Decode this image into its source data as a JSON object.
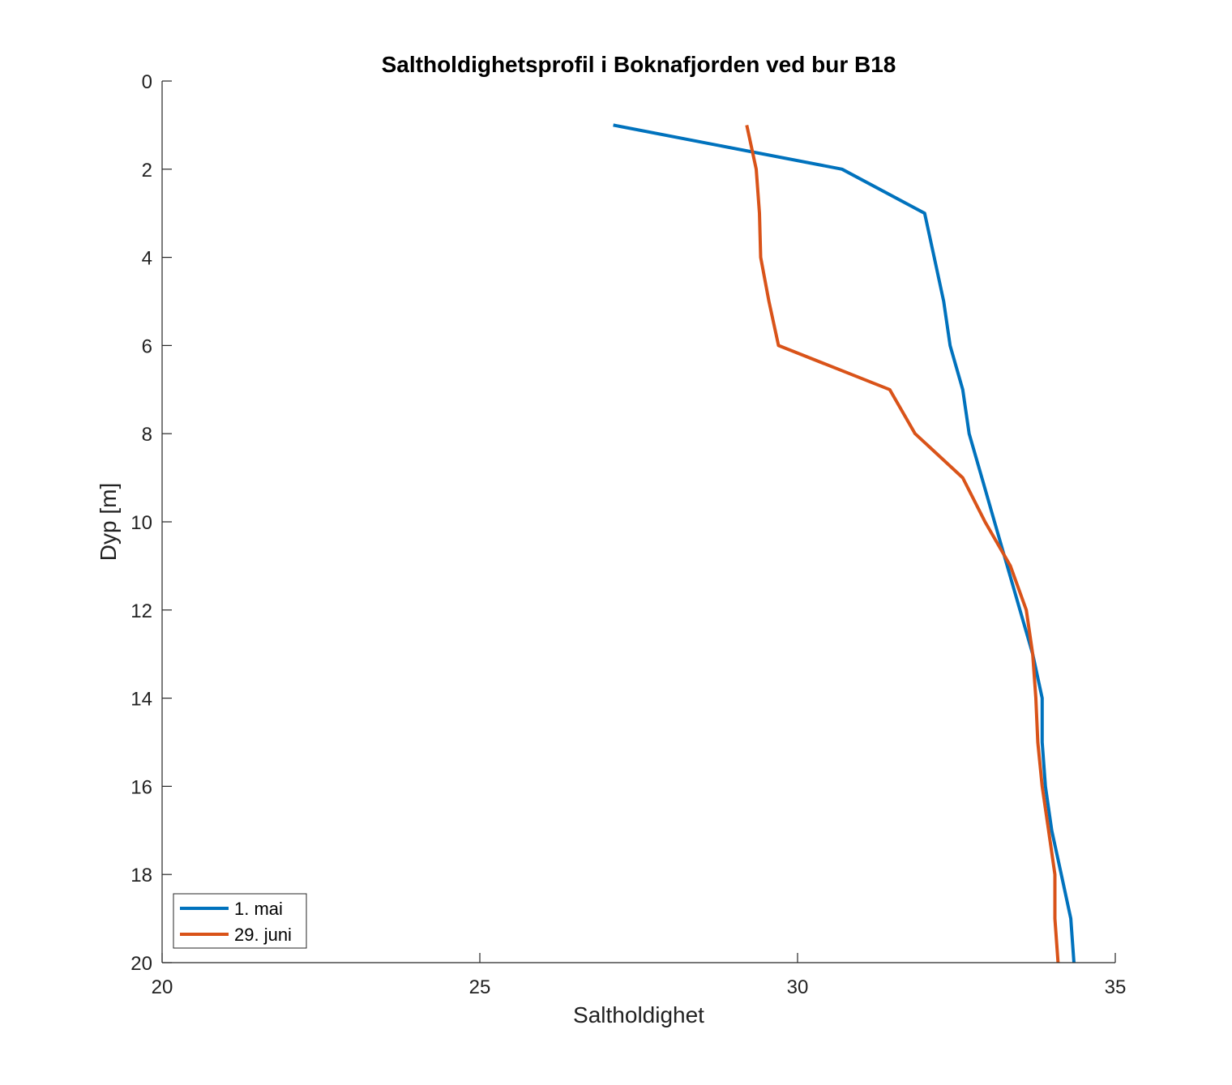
{
  "chart_data": {
    "type": "line",
    "title": "Saltholdighetsprofil i Boknafjorden ved bur B18",
    "xlabel": "Saltholdighet",
    "ylabel": "Dyp [m]",
    "xlim": [
      20,
      35
    ],
    "ylim": [
      0,
      20
    ],
    "y_reversed": true,
    "x_ticks": [
      "20",
      "25",
      "30",
      "35"
    ],
    "y_ticks": [
      "0",
      "2",
      "4",
      "6",
      "8",
      "10",
      "12",
      "14",
      "16",
      "18",
      "20"
    ],
    "grid": false,
    "legend_position": "bottom-left",
    "series": [
      {
        "name": "1. mai",
        "color": "#0072BD",
        "points": [
          {
            "depth": 1,
            "salinity": 27.1
          },
          {
            "depth": 2,
            "salinity": 30.7
          },
          {
            "depth": 3,
            "salinity": 32.0
          },
          {
            "depth": 4,
            "salinity": 32.15
          },
          {
            "depth": 5,
            "salinity": 32.3
          },
          {
            "depth": 6,
            "salinity": 32.4
          },
          {
            "depth": 7,
            "salinity": 32.6
          },
          {
            "depth": 8,
            "salinity": 32.7
          },
          {
            "depth": 9,
            "salinity": 32.9
          },
          {
            "depth": 10,
            "salinity": 33.1
          },
          {
            "depth": 11,
            "salinity": 33.3
          },
          {
            "depth": 12,
            "salinity": 33.5
          },
          {
            "depth": 13,
            "salinity": 33.7
          },
          {
            "depth": 14,
            "salinity": 33.85
          },
          {
            "depth": 15,
            "salinity": 33.85
          },
          {
            "depth": 16,
            "salinity": 33.9
          },
          {
            "depth": 17,
            "salinity": 34.0
          },
          {
            "depth": 18,
            "salinity": 34.15
          },
          {
            "depth": 19,
            "salinity": 34.3
          },
          {
            "depth": 20,
            "salinity": 34.35
          }
        ]
      },
      {
        "name": "29. juni",
        "color": "#D95319",
        "points": [
          {
            "depth": 1,
            "salinity": 29.2
          },
          {
            "depth": 2,
            "salinity": 29.35
          },
          {
            "depth": 3,
            "salinity": 29.4
          },
          {
            "depth": 4,
            "salinity": 29.42
          },
          {
            "depth": 5,
            "salinity": 29.55
          },
          {
            "depth": 6,
            "salinity": 29.7
          },
          {
            "depth": 7,
            "salinity": 31.45
          },
          {
            "depth": 8,
            "salinity": 31.85
          },
          {
            "depth": 9,
            "salinity": 32.6
          },
          {
            "depth": 10,
            "salinity": 32.95
          },
          {
            "depth": 11,
            "salinity": 33.35
          },
          {
            "depth": 12,
            "salinity": 33.6
          },
          {
            "depth": 13,
            "salinity": 33.7
          },
          {
            "depth": 14,
            "salinity": 33.75
          },
          {
            "depth": 15,
            "salinity": 33.78
          },
          {
            "depth": 16,
            "salinity": 33.85
          },
          {
            "depth": 17,
            "salinity": 33.95
          },
          {
            "depth": 18,
            "salinity": 34.05
          },
          {
            "depth": 19,
            "salinity": 34.05
          },
          {
            "depth": 20,
            "salinity": 34.1
          }
        ]
      }
    ]
  }
}
